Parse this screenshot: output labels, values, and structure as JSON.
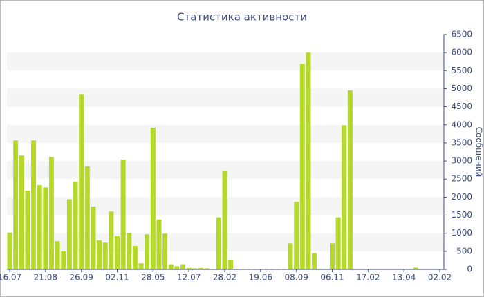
{
  "chart_data": {
    "type": "bar",
    "title": "Статистика активности",
    "y_label": "Сообщений",
    "categories": [
      "16.07",
      null,
      null,
      null,
      null,
      null,
      "21.08",
      null,
      null,
      null,
      null,
      null,
      "26.09",
      null,
      null,
      null,
      null,
      null,
      "02.11",
      null,
      null,
      null,
      null,
      null,
      "28.05",
      null,
      null,
      null,
      null,
      null,
      "12.07",
      null,
      null,
      null,
      null,
      null,
      "28.02",
      null,
      null,
      null,
      null,
      null,
      "19.06",
      null,
      null,
      null,
      null,
      null,
      "08.09",
      null,
      null,
      null,
      null,
      null,
      "06.11",
      null,
      null,
      null,
      null,
      null,
      "17.02",
      null,
      null,
      null,
      null,
      null,
      "13.04",
      null,
      null,
      null,
      null,
      null,
      "02.02"
    ],
    "values": [
      1020,
      3570,
      3150,
      2180,
      3570,
      2330,
      2270,
      3110,
      780,
      500,
      1940,
      2430,
      4850,
      2850,
      1740,
      800,
      740,
      1600,
      920,
      3040,
      1010,
      650,
      170,
      970,
      3920,
      1380,
      990,
      140,
      90,
      140,
      40,
      30,
      40,
      30,
      20,
      1440,
      2720,
      270,
      20,
      20,
      20,
      20,
      20,
      20,
      20,
      20,
      20,
      720,
      1870,
      5690,
      6000,
      450,
      10,
      10,
      720,
      1440,
      3990,
      4950,
      10,
      10,
      10,
      10,
      10,
      10,
      10,
      10,
      10,
      10,
      50,
      10,
      10,
      10,
      10
    ],
    "color": "#b5d92b",
    "ylim": [
      0,
      6500
    ],
    "yticks": [
      0,
      500,
      1000,
      1500,
      2000,
      2500,
      3000,
      3500,
      4000,
      4500,
      5000,
      5500,
      6000,
      6500
    ],
    "grid": true
  }
}
